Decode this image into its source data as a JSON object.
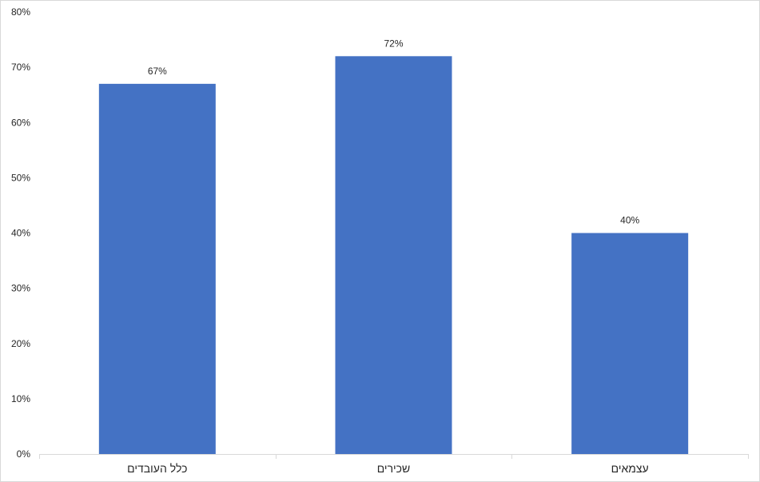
{
  "chart_data": {
    "type": "bar",
    "title": "",
    "xlabel": "",
    "ylabel": "",
    "categories": [
      "כלל העובדים",
      "שכירים",
      "עצמאים"
    ],
    "values": [
      67,
      72,
      40
    ],
    "value_labels": [
      "67%",
      "72%",
      "40%"
    ],
    "ylim": [
      0,
      80
    ],
    "yticks": [
      0,
      10,
      20,
      30,
      40,
      50,
      60,
      70,
      80
    ],
    "ytick_labels": [
      "0%",
      "10%",
      "20%",
      "30%",
      "40%",
      "50%",
      "60%",
      "70%",
      "80%"
    ],
    "grid": false,
    "legend": "none",
    "bar_color": "#4472c4",
    "axis_color": "#d9d9d9",
    "text_color": "#262626"
  }
}
